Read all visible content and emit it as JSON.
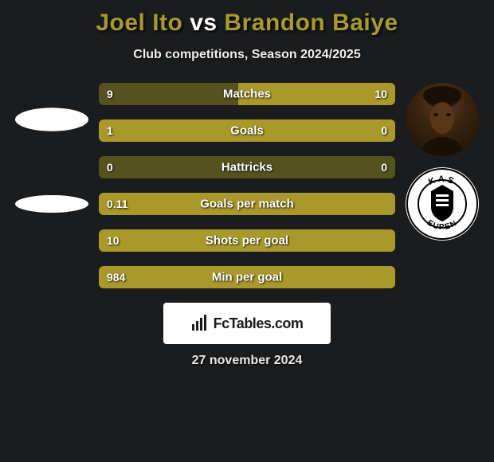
{
  "title": {
    "player1": "Joel Ito",
    "vs": " vs ",
    "player2": "Brandon Baiye",
    "player1_color": "#a89a2e",
    "vs_color": "#ffffff",
    "player2_color": "#a89a2e"
  },
  "subtitle": "Club competitions, Season 2024/2025",
  "background_color": "#1a1c1e",
  "bar_track_color": "#54521f",
  "bar_fill_color": "#a9992a",
  "stats": [
    {
      "label": "Matches",
      "left_val": "9",
      "right_val": "10",
      "left_pct": 47,
      "right_pct": 53,
      "winner": "right"
    },
    {
      "label": "Goals",
      "left_val": "1",
      "right_val": "0",
      "left_pct": 100,
      "right_pct": 0,
      "winner": "left"
    },
    {
      "label": "Hattricks",
      "left_val": "0",
      "right_val": "0",
      "left_pct": 0,
      "right_pct": 0,
      "winner": "none"
    },
    {
      "label": "Goals per match",
      "left_val": "0.11",
      "right_val": "",
      "left_pct": 100,
      "right_pct": 0,
      "winner": "left"
    },
    {
      "label": "Shots per goal",
      "left_val": "10",
      "right_val": "",
      "left_pct": 100,
      "right_pct": 0,
      "winner": "left"
    },
    {
      "label": "Min per goal",
      "left_val": "984",
      "right_val": "",
      "left_pct": 100,
      "right_pct": 0,
      "winner": "left"
    }
  ],
  "branding": "FcTables.com",
  "date": "27 november 2024",
  "badge_text": {
    "kas": "KAS",
    "eupen": "EUPEN"
  }
}
